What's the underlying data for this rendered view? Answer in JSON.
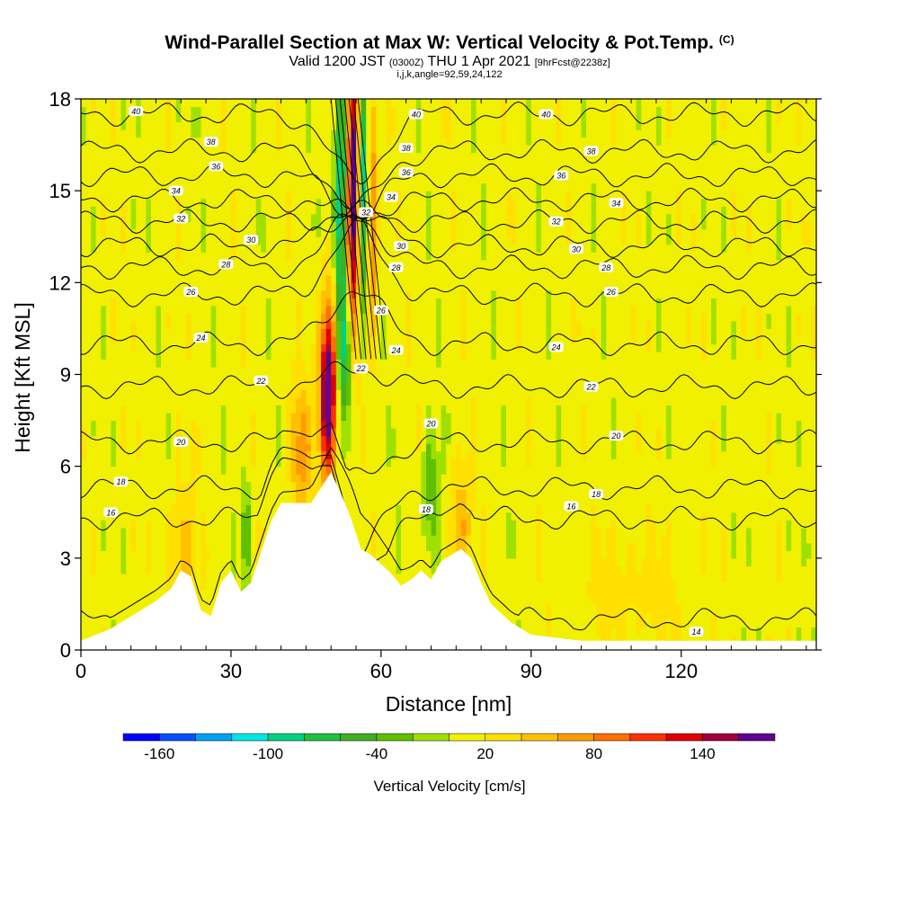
{
  "header": {
    "title": "Wind-Parallel Section at Max W: Vertical Velocity & Pot.Temp.",
    "copyright": "(C)",
    "valid_prefix": "Valid 1200 JST",
    "valid_utc": "(0300Z)",
    "valid_date": "THU 1 Apr 2021",
    "forecast": "[9hrFcst@2238z]",
    "indices": "i,j,k,angle=92,59,24,122"
  },
  "chart_data": {
    "type": "heatmap",
    "title": "Wind-Parallel Section at Max W: Vertical Velocity & Pot.Temp.",
    "xlabel": "Distance [nm]",
    "ylabel": "Height [Kft MSL]",
    "xlim": [
      0,
      147
    ],
    "ylim": [
      0,
      18
    ],
    "x_ticks": [
      "0",
      "30",
      "60",
      "90",
      "120"
    ],
    "y_ticks": [
      "0",
      "3",
      "6",
      "9",
      "12",
      "15",
      "18"
    ],
    "terrain_profile": {
      "x": [
        0,
        3,
        6,
        9,
        12,
        15,
        18,
        20,
        22,
        24,
        26,
        28,
        30,
        32,
        34,
        36,
        38,
        40,
        42,
        44,
        46,
        48,
        50,
        52,
        54,
        56,
        58,
        60,
        62,
        64,
        66,
        68,
        70,
        72,
        74,
        76,
        78,
        80,
        82,
        84,
        86,
        88,
        90,
        95,
        100,
        110,
        120,
        130,
        140,
        147
      ],
      "height_kft": [
        0.3,
        0.5,
        0.7,
        1.0,
        1.3,
        1.6,
        2.0,
        2.6,
        2.4,
        1.3,
        1.1,
        2.2,
        2.6,
        1.9,
        2.2,
        3.2,
        4.2,
        4.8,
        4.8,
        4.8,
        4.8,
        5.3,
        5.8,
        5.1,
        4.3,
        3.3,
        3.1,
        2.8,
        2.5,
        2.1,
        2.3,
        2.6,
        2.3,
        2.9,
        3.1,
        3.3,
        3.0,
        2.2,
        1.5,
        1.2,
        0.9,
        0.7,
        0.5,
        0.4,
        0.3,
        0.3,
        0.3,
        0.3,
        0.3,
        0.3
      ]
    },
    "vertical_velocity": {
      "units": "cm/s",
      "background": 10,
      "features": [
        {
          "x": 49.5,
          "z": 8.5,
          "sx": 1.2,
          "sz": 2.0,
          "w": 200
        },
        {
          "x": 52.5,
          "z": 9.5,
          "sx": 1.2,
          "sz": 1.8,
          "w": -80
        },
        {
          "x": 54.5,
          "z": 15.0,
          "sx": 1.0,
          "sz": 3.0,
          "w": 190
        },
        {
          "x": 56.5,
          "z": 14.8,
          "sx": 0.9,
          "sz": 2.5,
          "w": -140
        },
        {
          "x": 58.0,
          "z": 14.0,
          "sx": 0.8,
          "sz": 2.5,
          "w": 110
        },
        {
          "x": 52.0,
          "z": 15.0,
          "sx": 0.9,
          "sz": 3.0,
          "w": -120
        },
        {
          "x": 44.0,
          "z": 6.5,
          "sx": 1.5,
          "sz": 1.5,
          "w": 60
        },
        {
          "x": 76.0,
          "z": 4.0,
          "sx": 1.5,
          "sz": 1.5,
          "w": 50
        },
        {
          "x": 70.0,
          "z": 5.0,
          "sx": 1.2,
          "sz": 1.5,
          "w": -50
        },
        {
          "x": 20.0,
          "z": 3.0,
          "sx": 2.0,
          "sz": 1.5,
          "w": 40
        },
        {
          "x": 33.0,
          "z": 3.8,
          "sx": 0.7,
          "sz": 1.2,
          "w": -60
        },
        {
          "x": 110.0,
          "z": 2.0,
          "sx": 8.0,
          "sz": 1.2,
          "w": 20
        }
      ]
    },
    "colorbar": {
      "label": "Vertical Velocity [cm/s]",
      "tick_labels": [
        "-160",
        "-100",
        "-40",
        "20",
        "80",
        "140"
      ],
      "levels": [
        -180,
        -160,
        -140,
        -120,
        -100,
        -80,
        -60,
        -40,
        -20,
        0,
        20,
        40,
        60,
        80,
        100,
        120,
        140,
        160,
        180
      ],
      "colors": [
        "#0000ff",
        "#0050ff",
        "#00a0f0",
        "#00e6e6",
        "#00d080",
        "#20c040",
        "#40b020",
        "#60c000",
        "#a0e000",
        "#f0f000",
        "#ffe000",
        "#ffc000",
        "#ff9c00",
        "#ff7000",
        "#ff3000",
        "#e00000",
        "#a00040",
        "#600090"
      ]
    },
    "potential_temperature": {
      "units": "deg C",
      "contour_levels": [
        14,
        16,
        18,
        20,
        22,
        24,
        26,
        28,
        30,
        32,
        34,
        36,
        38,
        40
      ],
      "labels": [
        {
          "text": "40",
          "x": 11,
          "z": 17.6
        },
        {
          "text": "40",
          "x": 67,
          "z": 17.5
        },
        {
          "text": "40",
          "x": 93,
          "z": 17.5
        },
        {
          "text": "38",
          "x": 26,
          "z": 16.6
        },
        {
          "text": "38",
          "x": 65,
          "z": 16.4
        },
        {
          "text": "38",
          "x": 102,
          "z": 16.3
        },
        {
          "text": "36",
          "x": 27,
          "z": 15.8
        },
        {
          "text": "36",
          "x": 65,
          "z": 15.6
        },
        {
          "text": "36",
          "x": 96,
          "z": 15.5
        },
        {
          "text": "34",
          "x": 19,
          "z": 15.0
        },
        {
          "text": "34",
          "x": 62,
          "z": 14.8
        },
        {
          "text": "34",
          "x": 107,
          "z": 14.6
        },
        {
          "text": "32",
          "x": 20,
          "z": 14.1
        },
        {
          "text": "32",
          "x": 95,
          "z": 14.0
        },
        {
          "text": "32",
          "x": 57,
          "z": 14.3
        },
        {
          "text": "30",
          "x": 34,
          "z": 13.4
        },
        {
          "text": "30",
          "x": 64,
          "z": 13.2
        },
        {
          "text": "30",
          "x": 99,
          "z": 13.1
        },
        {
          "text": "28",
          "x": 29,
          "z": 12.6
        },
        {
          "text": "28",
          "x": 63,
          "z": 12.5
        },
        {
          "text": "28",
          "x": 105,
          "z": 12.5
        },
        {
          "text": "26",
          "x": 22,
          "z": 11.7
        },
        {
          "text": "26",
          "x": 60,
          "z": 11.1
        },
        {
          "text": "26",
          "x": 106,
          "z": 11.7
        },
        {
          "text": "24",
          "x": 24,
          "z": 10.2
        },
        {
          "text": "24",
          "x": 63,
          "z": 9.8
        },
        {
          "text": "24",
          "x": 95,
          "z": 9.9
        },
        {
          "text": "22",
          "x": 36,
          "z": 8.8
        },
        {
          "text": "22",
          "x": 56,
          "z": 9.2
        },
        {
          "text": "22",
          "x": 102,
          "z": 8.6
        },
        {
          "text": "20",
          "x": 20,
          "z": 6.8
        },
        {
          "text": "20",
          "x": 70,
          "z": 7.4
        },
        {
          "text": "20",
          "x": 107,
          "z": 7.0
        },
        {
          "text": "18",
          "x": 8,
          "z": 5.5
        },
        {
          "text": "18",
          "x": 69,
          "z": 4.6
        },
        {
          "text": "18",
          "x": 103,
          "z": 5.1
        },
        {
          "text": "16",
          "x": 6,
          "z": 4.5
        },
        {
          "text": "16",
          "x": 98,
          "z": 4.7
        },
        {
          "text": "14",
          "x": 123,
          "z": 0.6
        }
      ]
    }
  }
}
